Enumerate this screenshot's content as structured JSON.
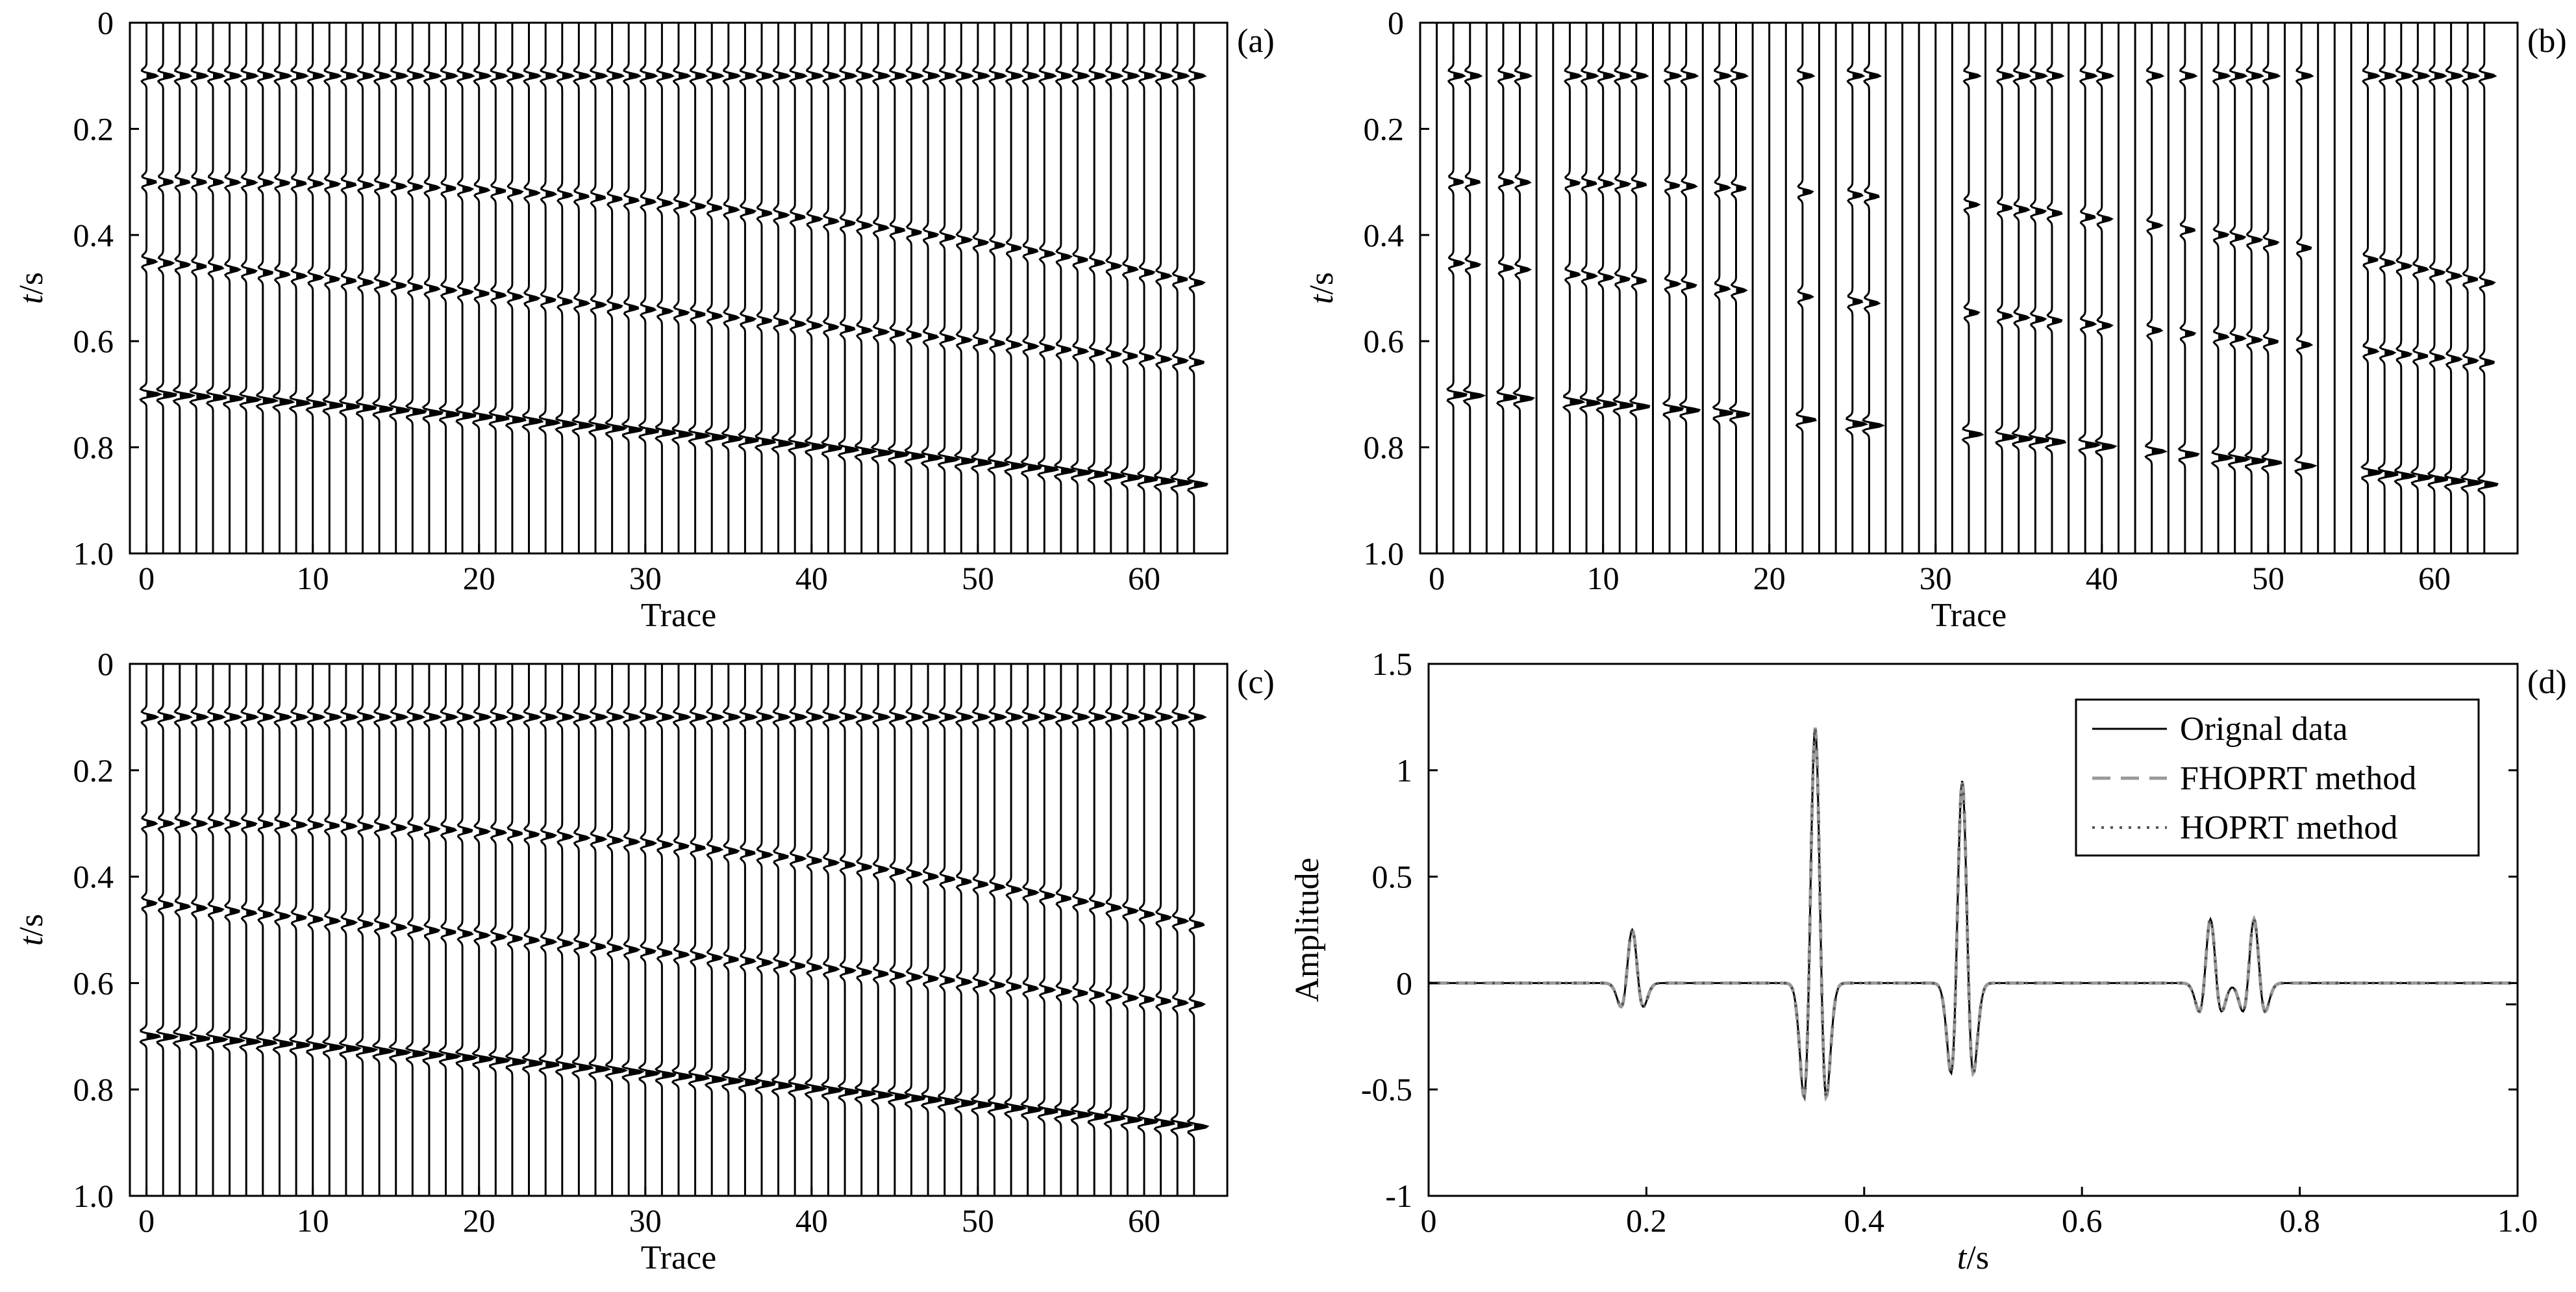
{
  "figure": {
    "panels": [
      "a",
      "b",
      "c",
      "d"
    ]
  },
  "chart_data": [
    {
      "id": "a",
      "type": "seismic-wiggle",
      "panel_label": "(a)",
      "xlabel": "Trace",
      "ylabel_italic": "t",
      "ylabel_unit": "/s",
      "xlim": [
        -1,
        65
      ],
      "ylim": [
        0,
        1.0
      ],
      "xticks": [
        0,
        10,
        20,
        30,
        40,
        50,
        60
      ],
      "xtick_labels": [
        "0",
        "10",
        "20",
        "30",
        "40",
        "50",
        "60"
      ],
      "yticks": [
        0,
        0.2,
        0.4,
        0.6,
        0.8,
        1.0
      ],
      "ytick_labels": [
        "0",
        "0.2",
        "0.4",
        "0.6",
        "0.8",
        "1.0"
      ],
      "trace_count": 64,
      "trace_spacing": 1,
      "wiggle_scale": 0.9,
      "missing_traces": [],
      "events": [
        {
          "name": "flat-0.10",
          "t0": 0.1,
          "t_end": 0.1,
          "amp": 0.6
        },
        {
          "name": "dip-0.30",
          "t0": 0.3,
          "t_end": 0.49,
          "amp": 0.55,
          "curve": 2.2
        },
        {
          "name": "dip-0.45",
          "t0": 0.45,
          "t_end": 0.64,
          "amp": 0.55,
          "curve": 1.0
        },
        {
          "name": "dip-0.70",
          "t0": 0.7,
          "t_end": 0.87,
          "amp": 0.75,
          "curve": 1.2
        }
      ]
    },
    {
      "id": "b",
      "type": "seismic-wiggle",
      "panel_label": "(b)",
      "xlabel": "Trace",
      "ylabel_italic": "t",
      "ylabel_unit": "/s",
      "xlim": [
        -1,
        65
      ],
      "ylim": [
        0,
        1.0
      ],
      "xticks": [
        0,
        10,
        20,
        30,
        40,
        50,
        60
      ],
      "xtick_labels": [
        "0",
        "10",
        "20",
        "30",
        "40",
        "50",
        "60"
      ],
      "yticks": [
        0,
        0.2,
        0.4,
        0.6,
        0.8,
        1.0
      ],
      "ytick_labels": [
        "0",
        "0.2",
        "0.4",
        "0.6",
        "0.8",
        "1.0"
      ],
      "trace_count": 64,
      "trace_spacing": 1,
      "wiggle_scale": 0.9,
      "missing_traces": [
        0,
        3,
        6,
        7,
        13,
        16,
        19,
        20,
        21,
        23,
        24,
        27,
        28,
        29,
        30,
        31,
        33,
        38,
        41,
        42,
        44,
        46,
        51,
        53,
        54,
        55
      ],
      "events": [
        {
          "name": "flat-0.10",
          "t0": 0.1,
          "t_end": 0.1,
          "amp": 0.6
        },
        {
          "name": "dip-0.30",
          "t0": 0.3,
          "t_end": 0.49,
          "amp": 0.55,
          "curve": 2.2
        },
        {
          "name": "dip-0.45",
          "t0": 0.45,
          "t_end": 0.64,
          "amp": 0.55,
          "curve": 1.0
        },
        {
          "name": "dip-0.70",
          "t0": 0.7,
          "t_end": 0.87,
          "amp": 0.75,
          "curve": 1.2
        }
      ]
    },
    {
      "id": "c",
      "type": "seismic-wiggle",
      "panel_label": "(c)",
      "xlabel": "Trace",
      "ylabel_italic": "t",
      "ylabel_unit": "/s",
      "xlim": [
        -1,
        65
      ],
      "ylim": [
        0,
        1.0
      ],
      "xticks": [
        0,
        10,
        20,
        30,
        40,
        50,
        60
      ],
      "xtick_labels": [
        "0",
        "10",
        "20",
        "30",
        "40",
        "50",
        "60"
      ],
      "yticks": [
        0,
        0.2,
        0.4,
        0.6,
        0.8,
        1.0
      ],
      "ytick_labels": [
        "0",
        "0.2",
        "0.4",
        "0.6",
        "0.8",
        "1.0"
      ],
      "trace_count": 64,
      "trace_spacing": 1,
      "wiggle_scale": 0.9,
      "missing_traces": [],
      "events": [
        {
          "name": "flat-0.10",
          "t0": 0.1,
          "t_end": 0.1,
          "amp": 0.6
        },
        {
          "name": "dip-0.30",
          "t0": 0.3,
          "t_end": 0.49,
          "amp": 0.55,
          "curve": 2.2
        },
        {
          "name": "dip-0.45",
          "t0": 0.45,
          "t_end": 0.64,
          "amp": 0.55,
          "curve": 1.0
        },
        {
          "name": "dip-0.70",
          "t0": 0.7,
          "t_end": 0.87,
          "amp": 0.75,
          "curve": 1.2
        }
      ]
    },
    {
      "id": "d",
      "type": "line",
      "panel_label": "(d)",
      "xlabel_italic": "t",
      "xlabel_unit": "/s",
      "ylabel": "Amplitude",
      "xlim": [
        0,
        1.0
      ],
      "ylim": [
        -1,
        1.5
      ],
      "xticks": [
        0,
        0.2,
        0.4,
        0.6,
        0.8,
        1.0
      ],
      "xtick_labels": [
        "0",
        "0.2",
        "0.4",
        "0.6",
        "0.8",
        "1.0"
      ],
      "yticks": [
        -1,
        -0.5,
        0,
        0.5,
        1,
        1.5
      ],
      "ytick_labels": [
        "-1",
        "-0.5",
        "0",
        "0.5",
        "1",
        "1.5"
      ],
      "legend_position": "top-right",
      "series": [
        {
          "name": "Orignal data",
          "style": "solid",
          "color": "#000000"
        },
        {
          "name": "FHOPRT method",
          "style": "dashed",
          "color": "#999999"
        },
        {
          "name": "HOPRT method",
          "style": "dotted",
          "color": "#555555"
        }
      ],
      "wavelets": [
        {
          "t": 0.187,
          "amp": 0.25
        },
        {
          "t": 0.355,
          "amp": 1.2
        },
        {
          "t": 0.49,
          "amp": 0.95
        },
        {
          "t": 0.718,
          "amp": 0.3
        },
        {
          "t": 0.758,
          "amp": 0.3
        }
      ]
    }
  ]
}
